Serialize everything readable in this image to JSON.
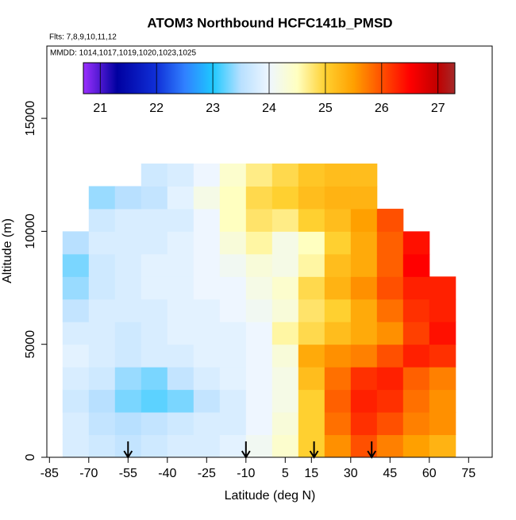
{
  "chart_data": {
    "type": "heatmap",
    "title": "ATOM3 Northbound HCFC141b_PMSD",
    "subtitle": "Flts: 7,8,9,10,11,12",
    "note": "MMDD: 1014,1017,1019,1020,1023,1025",
    "xlabel": "Latitude (deg N)",
    "ylabel": "Altitude (m)",
    "xlim": [
      -86,
      84
    ],
    "xticks": [
      -85,
      -70,
      -55,
      -40,
      -25,
      -10,
      5,
      15,
      30,
      45,
      60,
      75
    ],
    "ylim": [
      0,
      18200
    ],
    "yticks": [
      0,
      5000,
      10000,
      15000
    ],
    "x": [
      -75,
      -65,
      -55,
      -45,
      -35,
      -25,
      -15,
      -5,
      5,
      15,
      25,
      35,
      45,
      55,
      65
    ],
    "y": [
      500,
      1500,
      2500,
      3500,
      4500,
      5500,
      6500,
      7500,
      8500,
      9500,
      10500,
      11500,
      12500
    ],
    "z": [
      [
        23.8,
        23.7,
        23.6,
        23.7,
        23.8,
        23.8,
        23.9,
        24.1,
        24.4,
        25.0,
        25.6,
        26.0,
        25.7,
        25.5,
        25.3
      ],
      [
        23.8,
        23.6,
        23.5,
        23.6,
        23.7,
        23.8,
        23.8,
        24.0,
        24.3,
        25.0,
        25.8,
        26.2,
        26.0,
        25.7,
        25.6
      ],
      [
        23.7,
        23.5,
        23.3,
        23.2,
        23.3,
        23.6,
        23.8,
        24.0,
        24.2,
        25.0,
        25.9,
        26.3,
        26.2,
        25.8,
        25.6
      ],
      [
        23.8,
        23.7,
        23.4,
        23.3,
        23.6,
        23.8,
        23.9,
        24.0,
        24.2,
        25.2,
        25.8,
        26.2,
        26.3,
        25.9,
        25.7
      ],
      [
        23.9,
        23.8,
        23.7,
        23.8,
        23.8,
        23.9,
        23.9,
        24.0,
        24.3,
        25.4,
        25.6,
        25.7,
        26.0,
        26.3,
        26.2
      ],
      [
        23.8,
        23.8,
        23.7,
        23.8,
        23.9,
        23.9,
        23.9,
        24.0,
        24.6,
        24.9,
        25.2,
        25.4,
        25.6,
        26.1,
        26.4
      ],
      [
        23.6,
        23.8,
        23.8,
        23.8,
        23.9,
        23.9,
        24.0,
        24.1,
        24.3,
        24.8,
        25.0,
        25.4,
        25.8,
        26.2,
        26.3
      ],
      [
        23.4,
        23.7,
        23.8,
        23.9,
        23.9,
        24.0,
        24.0,
        24.2,
        24.4,
        24.9,
        25.3,
        25.6,
        26.0,
        26.3,
        26.3
      ],
      [
        23.3,
        23.7,
        23.8,
        23.9,
        23.9,
        24.0,
        24.1,
        24.3,
        24.2,
        24.6,
        25.2,
        25.4,
        25.9,
        26.5,
        null
      ],
      [
        23.5,
        23.8,
        23.8,
        23.8,
        23.9,
        24.0,
        24.3,
        24.6,
        24.2,
        24.5,
        25.0,
        25.4,
        25.9,
        26.4,
        null
      ],
      [
        null,
        23.7,
        23.8,
        23.8,
        23.8,
        24.0,
        24.5,
        24.8,
        24.7,
        25.0,
        25.2,
        25.5,
        26.0,
        null,
        null
      ],
      [
        null,
        23.4,
        23.5,
        23.6,
        23.9,
        24.2,
        24.5,
        24.9,
        25.0,
        25.2,
        25.3,
        25.3,
        null,
        null,
        null
      ],
      [
        null,
        null,
        null,
        23.7,
        23.8,
        24.0,
        24.4,
        24.7,
        24.9,
        25.1,
        25.2,
        25.2,
        null,
        null,
        null
      ]
    ],
    "zlim": [
      20.7,
      27.3
    ],
    "zticks": [
      21,
      22,
      23,
      24,
      25,
      26,
      27
    ],
    "colorscale": [
      [
        20.7,
        "#9b30ff"
      ],
      [
        21.3,
        "#0000a0"
      ],
      [
        22,
        "#1030d8"
      ],
      [
        22.5,
        "#3080ff"
      ],
      [
        23,
        "#1ec8ff"
      ],
      [
        23.5,
        "#b8e0ff"
      ],
      [
        24,
        "#eef6ff"
      ],
      [
        24.5,
        "#ffffc0"
      ],
      [
        25,
        "#ffd030"
      ],
      [
        25.5,
        "#ffa000"
      ],
      [
        26,
        "#ff5000"
      ],
      [
        26.5,
        "#ff0000"
      ],
      [
        27,
        "#c00000"
      ],
      [
        27.3,
        "#a52a2a"
      ]
    ],
    "arrows": [
      -55,
      -10,
      16,
      38
    ]
  }
}
